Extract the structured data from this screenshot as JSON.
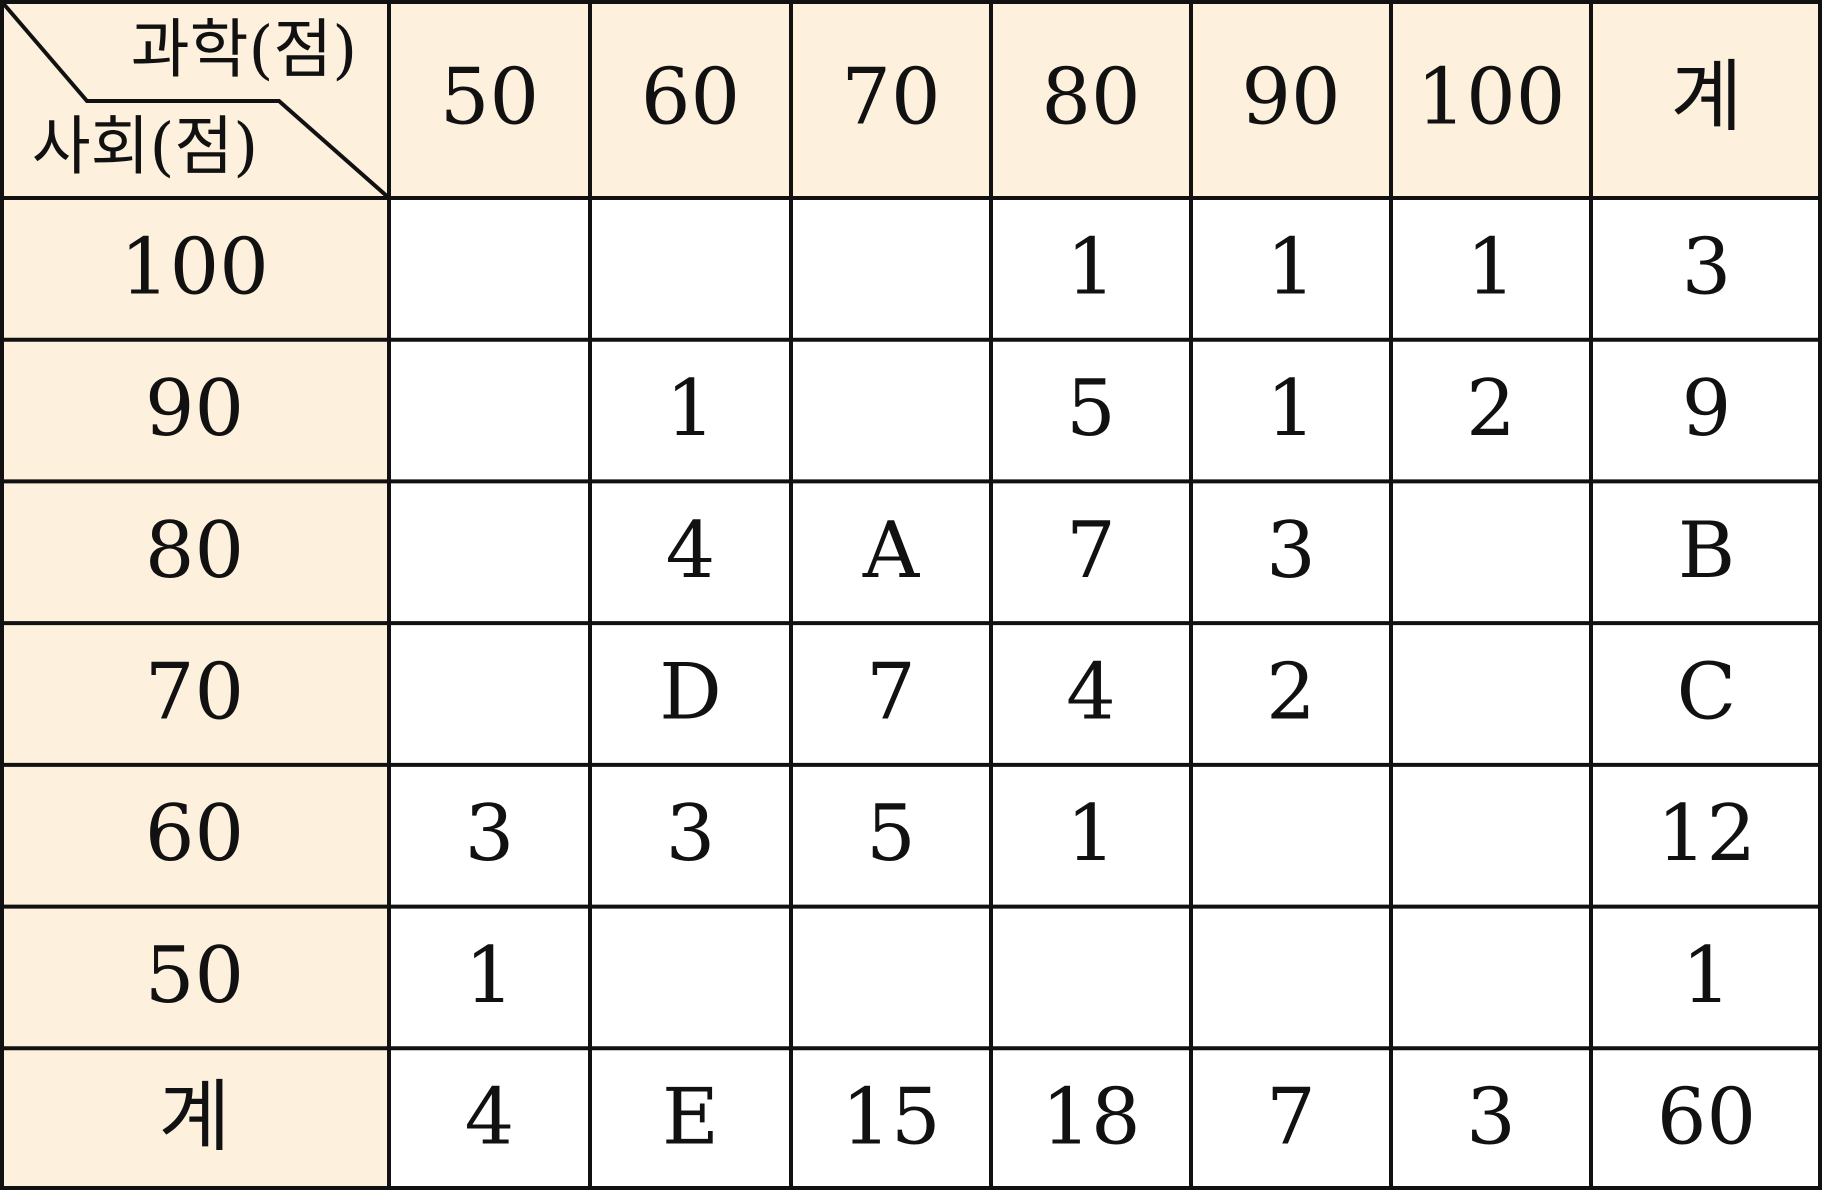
{
  "table": {
    "corner_top": "과학(점)",
    "corner_bottom": "사회(점)",
    "columns": [
      50,
      60,
      70,
      80,
      90,
      100,
      "계"
    ],
    "rows": [
      {
        "label": 100,
        "cells": [
          null,
          null,
          null,
          1,
          1,
          1,
          3
        ]
      },
      {
        "label": 90,
        "cells": [
          null,
          1,
          null,
          5,
          1,
          2,
          9
        ]
      },
      {
        "label": 80,
        "cells": [
          null,
          4,
          "A",
          7,
          3,
          null,
          "B"
        ]
      },
      {
        "label": 70,
        "cells": [
          null,
          "D",
          7,
          4,
          2,
          null,
          "C"
        ]
      },
      {
        "label": 60,
        "cells": [
          3,
          3,
          5,
          1,
          null,
          null,
          12
        ]
      },
      {
        "label": 50,
        "cells": [
          1,
          null,
          null,
          null,
          null,
          null,
          1
        ]
      },
      {
        "label": "계",
        "cells": [
          4,
          "E",
          15,
          18,
          7,
          3,
          60
        ]
      }
    ]
  }
}
